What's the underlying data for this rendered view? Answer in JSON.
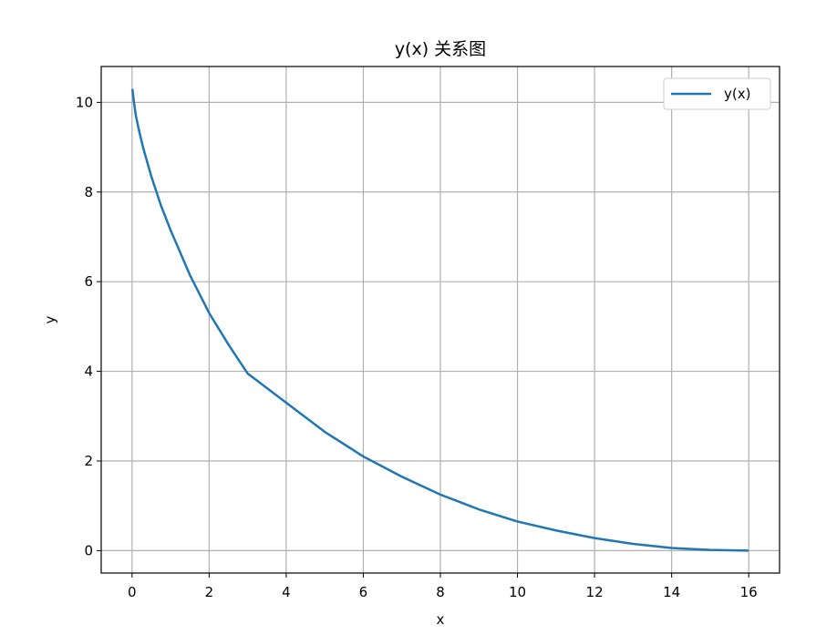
{
  "chart_data": {
    "type": "line",
    "title": "y(x) 关系图",
    "xlabel": "x",
    "ylabel": "y",
    "xlim": [
      -0.8,
      16.8
    ],
    "ylim": [
      -0.5,
      10.8
    ],
    "xticks": [
      0,
      2,
      4,
      6,
      8,
      10,
      12,
      14,
      16
    ],
    "yticks": [
      0,
      2,
      4,
      6,
      8,
      10
    ],
    "xtick_labels": [
      "0",
      "2",
      "4",
      "6",
      "8",
      "10",
      "12",
      "14",
      "16"
    ],
    "ytick_labels": [
      "0",
      "2",
      "4",
      "6",
      "8",
      "10"
    ],
    "grid": true,
    "legend": {
      "position": "top-right"
    },
    "series": [
      {
        "name": "y(x)",
        "color": "#1f77b4",
        "x": [
          0.01,
          0.05,
          0.1,
          0.2,
          0.3,
          0.5,
          0.75,
          1,
          1.5,
          2,
          2.5,
          3,
          4,
          5,
          6,
          7,
          8,
          9,
          10,
          11,
          12,
          13,
          14,
          15,
          16
        ],
        "y": [
          10.3,
          10.0,
          9.7,
          9.3,
          8.95,
          8.35,
          7.7,
          7.15,
          6.15,
          5.3,
          4.6,
          3.95,
          3.3,
          2.65,
          2.1,
          1.65,
          1.25,
          0.92,
          0.65,
          0.45,
          0.28,
          0.15,
          0.06,
          0.015,
          0.0
        ]
      }
    ]
  }
}
